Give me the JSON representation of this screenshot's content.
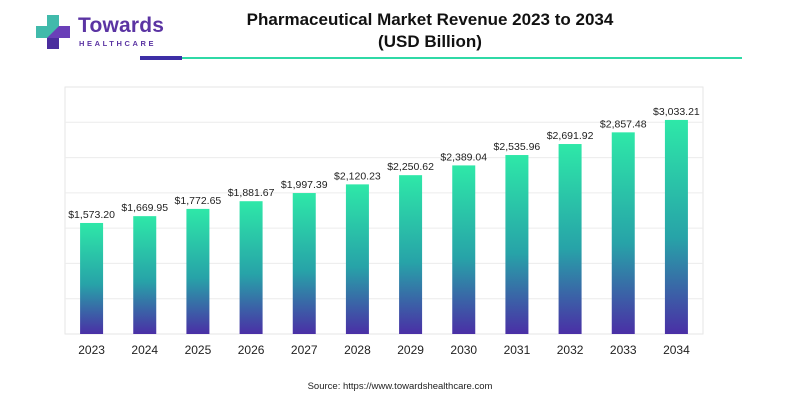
{
  "brand": {
    "name": "Towards",
    "tagline": "HEALTHCARE",
    "colors": {
      "primary": "#5b34a3",
      "accent": "#2fd9a6"
    },
    "icon": "plus-cross-logo-icon"
  },
  "header": {
    "title_line1": "Pharmaceutical Market Revenue 2023 to 2034",
    "title_line2": "(USD Billion)"
  },
  "chart_data": {
    "type": "bar",
    "title": "Pharmaceutical Market Revenue 2023 to 2034 (USD Billion)",
    "xlabel": "",
    "ylabel": "",
    "categories": [
      "2023",
      "2024",
      "2025",
      "2026",
      "2027",
      "2028",
      "2029",
      "2030",
      "2031",
      "2032",
      "2033",
      "2034"
    ],
    "values": [
      1573.2,
      1669.95,
      1772.65,
      1881.67,
      1997.39,
      2120.23,
      2250.62,
      2389.04,
      2535.96,
      2691.92,
      2857.48,
      3033.21
    ],
    "value_labels": [
      "$1,573.20",
      "$1,669.95",
      "$1,772.65",
      "$1,881.67",
      "$1,997.39",
      "$2,120.23",
      "$2,250.62",
      "$2,389.04",
      "$2,535.96",
      "$2,691.92",
      "$2,857.48",
      "$3,033.21"
    ],
    "ylim": [
      0,
      3500
    ],
    "grid": true,
    "bar_gradient": {
      "top": "#2ee8a8",
      "middle": "#27a3a8",
      "bottom": "#4a2fa6"
    }
  },
  "footer": {
    "source": "Source: https://www.towardshealthcare.com"
  }
}
